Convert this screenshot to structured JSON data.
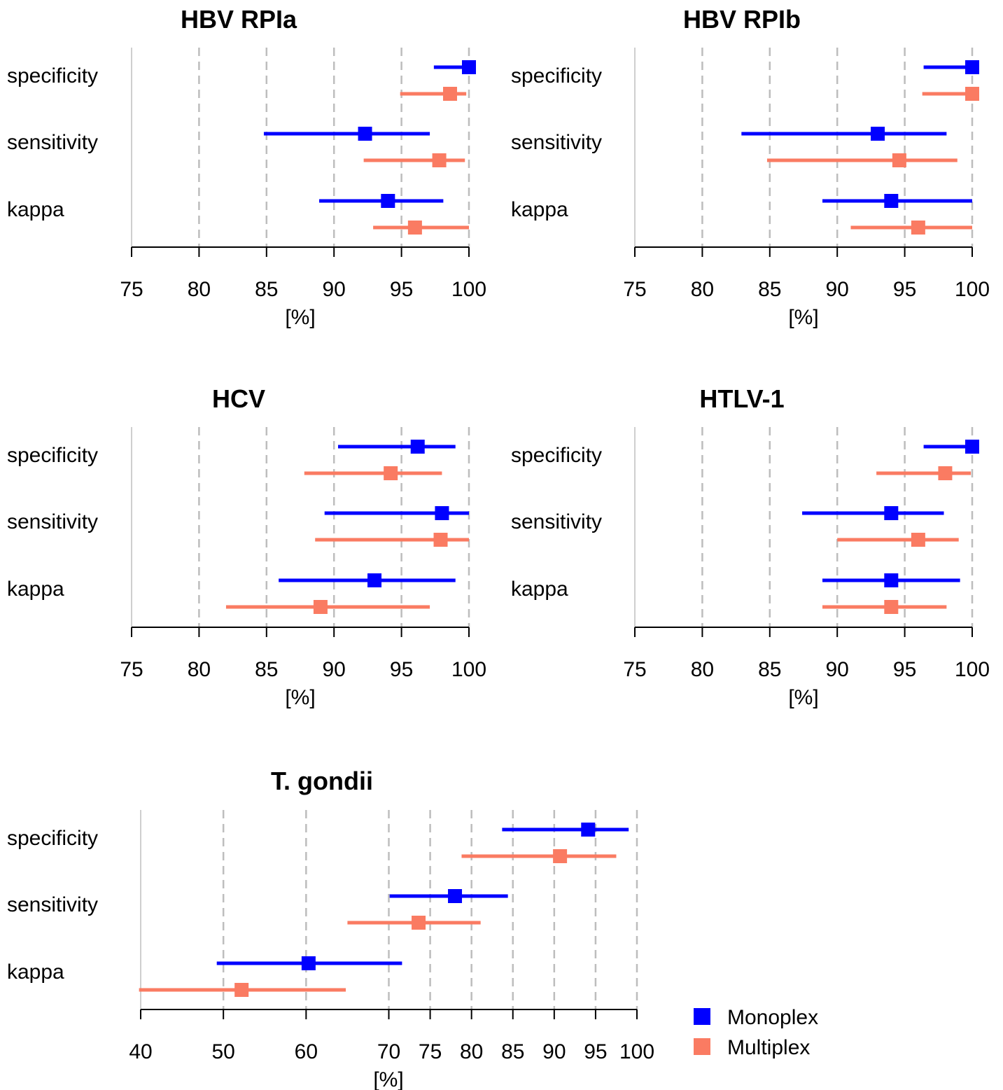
{
  "legend": {
    "placement": "bottom-right",
    "items": [
      {
        "label": "Monoplex",
        "color": "#0000FF"
      },
      {
        "label": "Multiplex",
        "color": "#FA7B62"
      }
    ]
  },
  "chart_data": [
    {
      "type": "forest",
      "title": "HBV RPIa",
      "xlabel": "[%]",
      "xlim": [
        75,
        100
      ],
      "ticks": [
        75,
        80,
        85,
        90,
        95,
        100
      ],
      "grid": "dashed vertical",
      "rows": [
        "specificity",
        "sensitivity",
        "kappa"
      ],
      "series": [
        {
          "name": "Monoplex",
          "color": "#0000FF",
          "estimates": [
            {
              "metric": "specificity",
              "value": 100,
              "lower": 97.4,
              "upper": 100
            },
            {
              "metric": "sensitivity",
              "value": 92.3,
              "lower": 84.8,
              "upper": 97.1
            },
            {
              "metric": "kappa",
              "value": 94,
              "lower": 88.9,
              "upper": 98.1
            }
          ]
        },
        {
          "name": "Multiplex",
          "color": "#FA7B62",
          "estimates": [
            {
              "metric": "specificity",
              "value": 98.6,
              "lower": 94.9,
              "upper": 99.8
            },
            {
              "metric": "sensitivity",
              "value": 97.8,
              "lower": 92.2,
              "upper": 99.7
            },
            {
              "metric": "kappa",
              "value": 96,
              "lower": 92.9,
              "upper": 100
            }
          ]
        }
      ]
    },
    {
      "type": "forest",
      "title": "HBV RPIb",
      "xlabel": "[%]",
      "xlim": [
        75,
        100
      ],
      "ticks": [
        75,
        80,
        85,
        90,
        95,
        100
      ],
      "grid": "dashed vertical",
      "rows": [
        "specificity",
        "sensitivity",
        "kappa"
      ],
      "series": [
        {
          "name": "Monoplex",
          "color": "#0000FF",
          "estimates": [
            {
              "metric": "specificity",
              "value": 100,
              "lower": 96.4,
              "upper": 100
            },
            {
              "metric": "sensitivity",
              "value": 93,
              "lower": 82.9,
              "upper": 98.1
            },
            {
              "metric": "kappa",
              "value": 94,
              "lower": 88.9,
              "upper": 100
            }
          ]
        },
        {
          "name": "Multiplex",
          "color": "#FA7B62",
          "estimates": [
            {
              "metric": "specificity",
              "value": 100,
              "lower": 96.3,
              "upper": 100
            },
            {
              "metric": "sensitivity",
              "value": 94.6,
              "lower": 84.8,
              "upper": 98.9
            },
            {
              "metric": "kappa",
              "value": 96,
              "lower": 91,
              "upper": 100
            }
          ]
        }
      ]
    },
    {
      "type": "forest",
      "title": "HCV",
      "xlabel": "[%]",
      "xlim": [
        75,
        100
      ],
      "ticks": [
        75,
        80,
        85,
        90,
        95,
        100
      ],
      "grid": "dashed vertical",
      "rows": [
        "specificity",
        "sensitivity",
        "kappa"
      ],
      "series": [
        {
          "name": "Monoplex",
          "color": "#0000FF",
          "estimates": [
            {
              "metric": "specificity",
              "value": 96.2,
              "lower": 90.3,
              "upper": 99
            },
            {
              "metric": "sensitivity",
              "value": 98,
              "lower": 89.3,
              "upper": 100
            },
            {
              "metric": "kappa",
              "value": 93,
              "lower": 85.9,
              "upper": 99
            }
          ]
        },
        {
          "name": "Multiplex",
          "color": "#FA7B62",
          "estimates": [
            {
              "metric": "specificity",
              "value": 94.2,
              "lower": 87.8,
              "upper": 98
            },
            {
              "metric": "sensitivity",
              "value": 97.9,
              "lower": 88.6,
              "upper": 100
            },
            {
              "metric": "kappa",
              "value": 89,
              "lower": 82,
              "upper": 97.1
            }
          ]
        }
      ]
    },
    {
      "type": "forest",
      "title": "HTLV-1",
      "xlabel": "[%]",
      "xlim": [
        75,
        100
      ],
      "ticks": [
        75,
        80,
        85,
        90,
        95,
        100
      ],
      "grid": "dashed vertical",
      "rows": [
        "specificity",
        "sensitivity",
        "kappa"
      ],
      "series": [
        {
          "name": "Monoplex",
          "color": "#0000FF",
          "estimates": [
            {
              "metric": "specificity",
              "value": 100,
              "lower": 96.4,
              "upper": 100
            },
            {
              "metric": "sensitivity",
              "value": 94,
              "lower": 87.4,
              "upper": 97.9
            },
            {
              "metric": "kappa",
              "value": 94,
              "lower": 88.9,
              "upper": 99.1
            }
          ]
        },
        {
          "name": "Multiplex",
          "color": "#FA7B62",
          "estimates": [
            {
              "metric": "specificity",
              "value": 98,
              "lower": 92.9,
              "upper": 99.9
            },
            {
              "metric": "sensitivity",
              "value": 96,
              "lower": 90,
              "upper": 99
            },
            {
              "metric": "kappa",
              "value": 94,
              "lower": 88.9,
              "upper": 98.1
            }
          ]
        }
      ]
    },
    {
      "type": "forest",
      "title": "T. gondii",
      "xlabel": "[%]",
      "xlim": [
        40,
        100
      ],
      "ticks": [
        40,
        50,
        60,
        70,
        75,
        80,
        85,
        90,
        95,
        100
      ],
      "grid": "dashed vertical at 50, 60, 70, 75, 80, 85, 90, 95, 100",
      "rows": [
        "specificity",
        "sensitivity",
        "kappa"
      ],
      "series": [
        {
          "name": "Monoplex",
          "color": "#0000FF",
          "estimates": [
            {
              "metric": "specificity",
              "value": 94.1,
              "lower": 83.7,
              "upper": 99
            },
            {
              "metric": "sensitivity",
              "value": 78,
              "lower": 70.1,
              "upper": 84.4
            },
            {
              "metric": "kappa",
              "value": 60.3,
              "lower": 49.2,
              "upper": 71.6
            }
          ]
        },
        {
          "name": "Multiplex",
          "color": "#FA7B62",
          "estimates": [
            {
              "metric": "specificity",
              "value": 90.7,
              "lower": 78.8,
              "upper": 97.5
            },
            {
              "metric": "sensitivity",
              "value": 73.6,
              "lower": 65,
              "upper": 81.1
            },
            {
              "metric": "kappa",
              "value": 52.2,
              "lower": 39.8,
              "upper": 64.8
            }
          ]
        }
      ]
    }
  ]
}
